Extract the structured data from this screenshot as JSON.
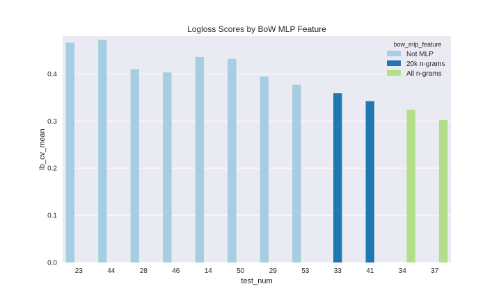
{
  "chart_data": {
    "type": "bar",
    "title": "Logloss Scores by BoW MLP Feature",
    "xlabel": "test_num",
    "ylabel": "lb_cv_mean",
    "ylim": [
      0,
      0.48
    ],
    "yticks": [
      "0.0",
      "0.1",
      "0.2",
      "0.3",
      "0.4"
    ],
    "grid": true,
    "legend_title": "bow_mlp_feature",
    "legend_position": "top-right",
    "categories": [
      "23",
      "44",
      "28",
      "46",
      "14",
      "50",
      "29",
      "53",
      "33",
      "41",
      "34",
      "37"
    ],
    "series": [
      {
        "name": "Not MLP",
        "color": "#a6cee3",
        "values": [
          0.466,
          0.472,
          0.41,
          0.403,
          0.436,
          0.432,
          0.394,
          0.377,
          null,
          null,
          null,
          null
        ]
      },
      {
        "name": "20k n-grams",
        "color": "#1f78b4",
        "values": [
          null,
          null,
          null,
          null,
          null,
          null,
          null,
          null,
          0.359,
          0.342,
          null,
          null
        ]
      },
      {
        "name": "All n-grams",
        "color": "#b2df8a",
        "values": [
          null,
          null,
          null,
          null,
          null,
          null,
          null,
          null,
          null,
          null,
          0.324,
          0.302
        ]
      }
    ]
  }
}
